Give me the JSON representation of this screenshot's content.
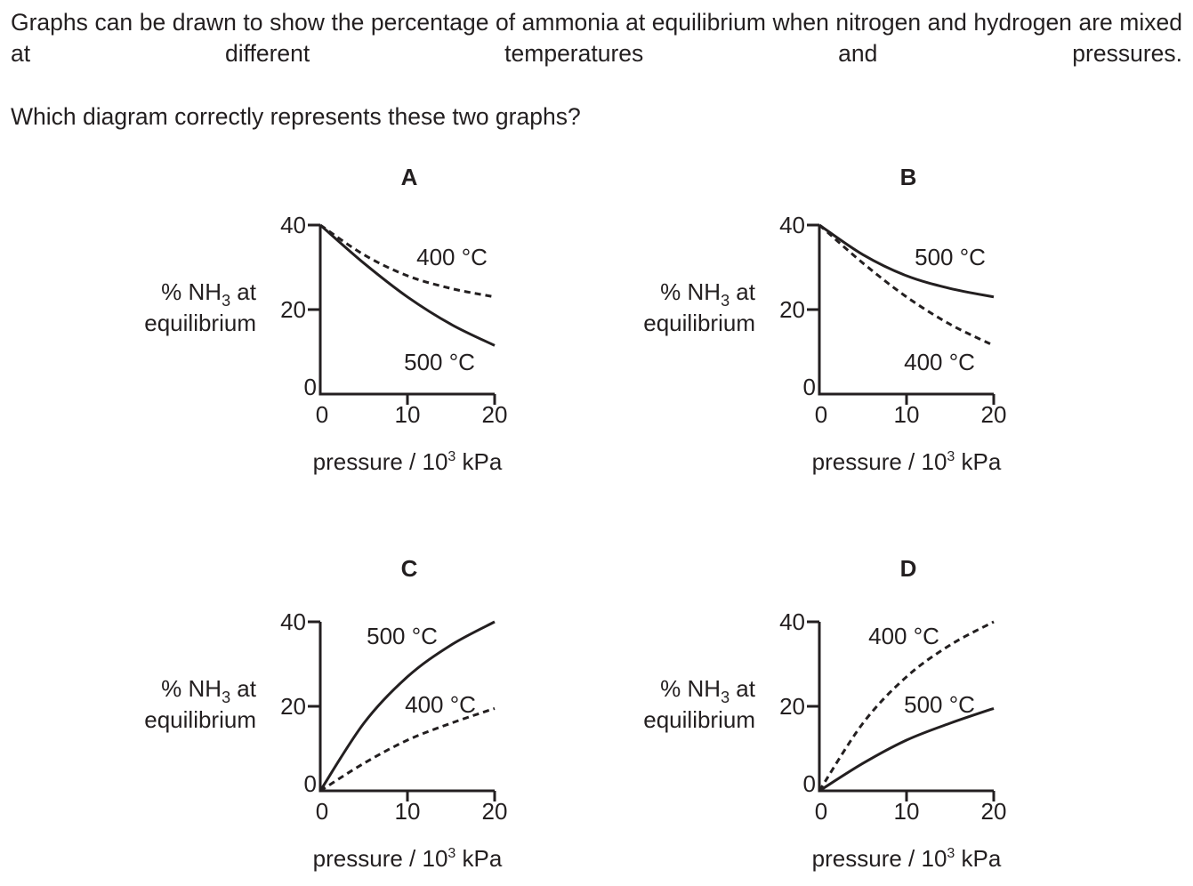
{
  "question": {
    "line1": "Graphs can be drawn to show the percentage of ammonia at equilibrium when nitrogen and hydrogen are mixed at different temperatures and pressures.",
    "line2": "Which diagram correctly represents these two graphs?"
  },
  "axis_labels": {
    "y_line1_pre": "% NH",
    "y_line1_sub": "3",
    "y_line1_post": " at",
    "y_line2": "equilibrium",
    "x_pre": "pressure / 10",
    "x_sup": "3",
    "x_post": " kPa"
  },
  "chart_data": [
    {
      "type": "line",
      "title": "A",
      "xlim": [
        0,
        20
      ],
      "ylim": [
        0,
        40
      ],
      "x_ticks": [
        "0",
        "10",
        "20"
      ],
      "y_ticks": [
        "0",
        "20",
        "40"
      ],
      "series": [
        {
          "name": "400 °C",
          "style": "dashed",
          "x": [
            0,
            5,
            10,
            15,
            20
          ],
          "y": [
            40,
            33,
            28,
            25,
            23
          ]
        },
        {
          "name": "500 °C",
          "style": "solid",
          "x": [
            0,
            5,
            10,
            15,
            20
          ],
          "y": [
            40,
            31,
            23,
            16.5,
            11.5
          ]
        }
      ],
      "annotations": [
        "400 °C",
        "500 °C"
      ]
    },
    {
      "type": "line",
      "title": "B",
      "xlim": [
        0,
        20
      ],
      "ylim": [
        0,
        40
      ],
      "x_ticks": [
        "0",
        "10",
        "20"
      ],
      "y_ticks": [
        "0",
        "20",
        "40"
      ],
      "series": [
        {
          "name": "500 °C",
          "style": "solid",
          "x": [
            0,
            5,
            10,
            15,
            20
          ],
          "y": [
            40,
            33,
            28,
            25,
            23
          ]
        },
        {
          "name": "400 °C",
          "style": "dashed",
          "x": [
            0,
            5,
            10,
            15,
            20
          ],
          "y": [
            40,
            31,
            23,
            16.5,
            11.5
          ]
        }
      ],
      "annotations": [
        "500 °C",
        "400 °C"
      ]
    },
    {
      "type": "line",
      "title": "C",
      "xlim": [
        0,
        20
      ],
      "ylim": [
        0,
        40
      ],
      "x_ticks": [
        "0",
        "10",
        "20"
      ],
      "y_ticks": [
        "0",
        "20",
        "40"
      ],
      "series": [
        {
          "name": "500 °C",
          "style": "solid",
          "x": [
            0,
            5,
            10,
            15,
            20
          ],
          "y": [
            0,
            16,
            27,
            34.5,
            40
          ]
        },
        {
          "name": "400 °C",
          "style": "dashed",
          "x": [
            0,
            5,
            10,
            15,
            20
          ],
          "y": [
            0,
            6.5,
            12,
            16,
            19.5
          ]
        }
      ],
      "annotations": [
        "500 °C",
        "400 °C"
      ]
    },
    {
      "type": "line",
      "title": "D",
      "xlim": [
        0,
        20
      ],
      "ylim": [
        0,
        40
      ],
      "x_ticks": [
        "0",
        "10",
        "20"
      ],
      "y_ticks": [
        "0",
        "20",
        "40"
      ],
      "series": [
        {
          "name": "400 °C",
          "style": "dashed",
          "x": [
            0,
            5,
            10,
            15,
            20
          ],
          "y": [
            0,
            16,
            27,
            34.5,
            40
          ]
        },
        {
          "name": "500 °C",
          "style": "solid",
          "x": [
            0,
            5,
            10,
            15,
            20
          ],
          "y": [
            0,
            6.5,
            12,
            16,
            19.5
          ]
        }
      ],
      "annotations": [
        "400 °C",
        "500 °C"
      ]
    }
  ]
}
